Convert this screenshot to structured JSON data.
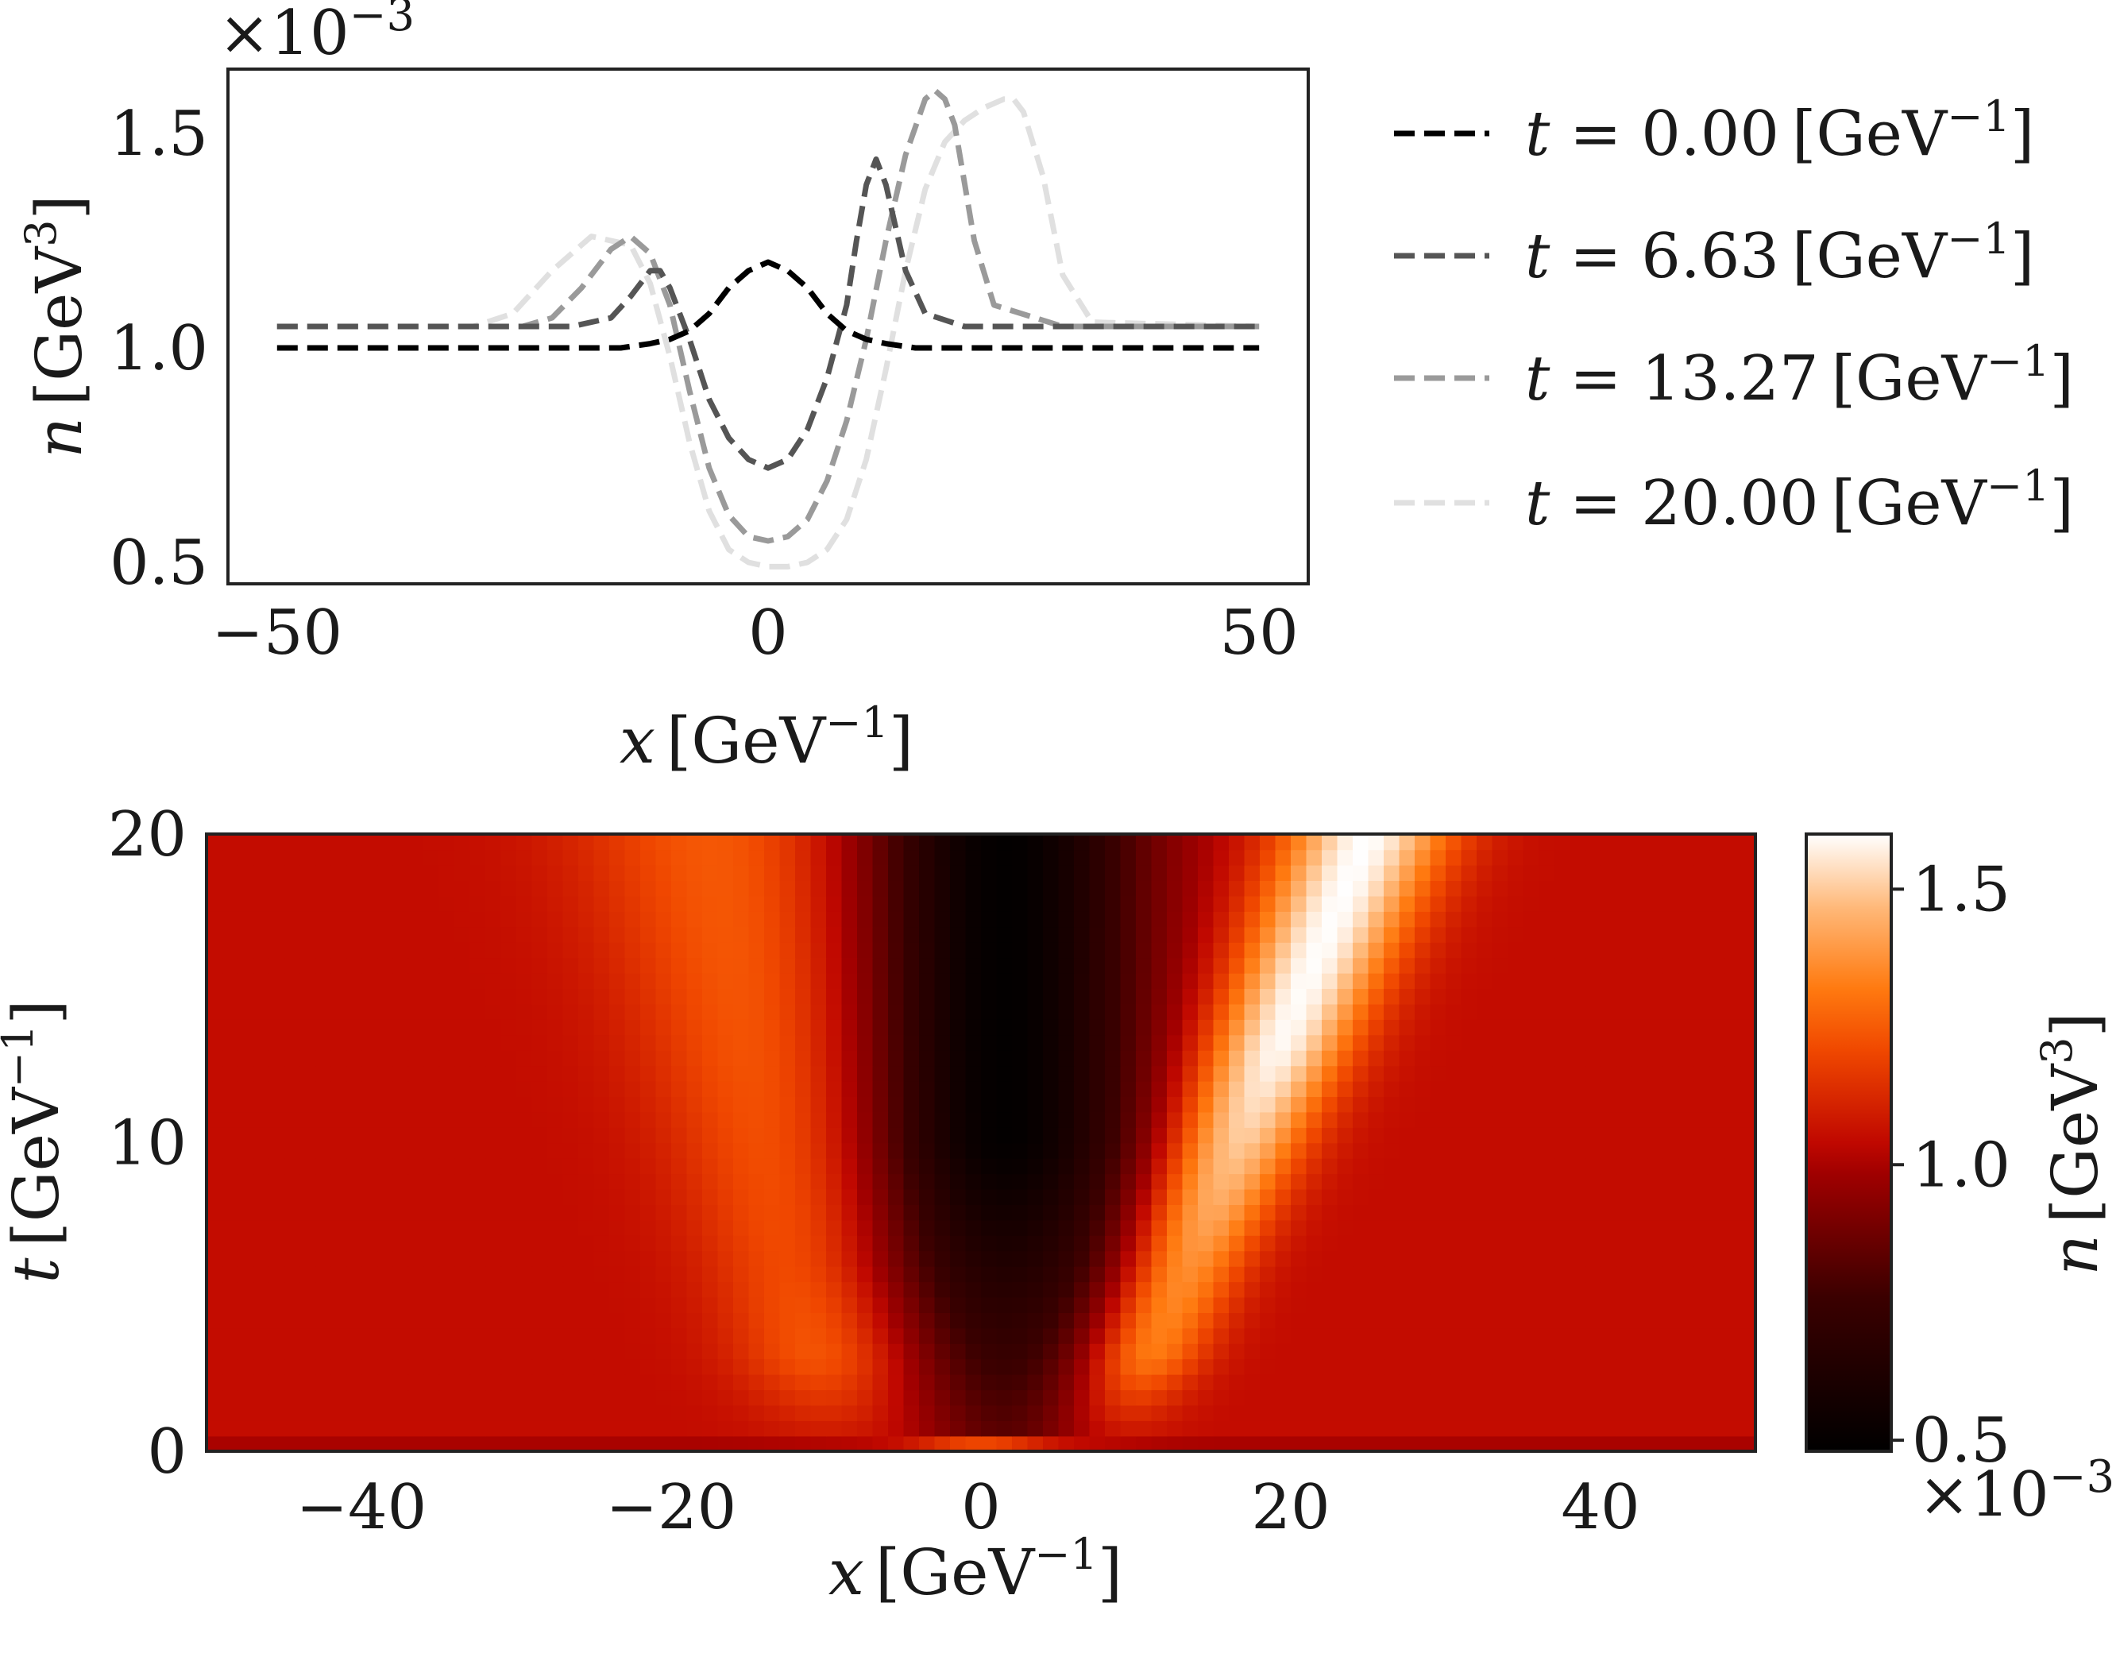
{
  "chart_data": [
    {
      "type": "line",
      "xlabel_var": "x",
      "xlabel_unit": "[GeV",
      "xlabel_exp": "−1",
      "xlabel_close": "]",
      "ylabel_var": "n",
      "ylabel_unit": "[GeV",
      "ylabel_exp": "3",
      "ylabel_close": "]",
      "scale_factor_text": "×10",
      "scale_factor_exp": "−3",
      "xlim": [
        -55,
        55
      ],
      "ylim": [
        0.45,
        1.65
      ],
      "xticks": [
        -50,
        0,
        50
      ],
      "xtick_labels": [
        "−50",
        "0",
        "50"
      ],
      "yticks": [
        0.5,
        1.0,
        1.5
      ],
      "ytick_labels": [
        "0.5",
        "1.0",
        "1.5"
      ],
      "legend_position": "outside-right",
      "grid": false,
      "series": [
        {
          "name": "t = 0.00 [GeV−1]",
          "t_text": "t",
          "val_text": " = 0.00",
          "unit_text": "[GeV",
          "exp_text": "−1",
          "close_text": "]",
          "color": "#000000",
          "x": [
            -50,
            -30,
            -20,
            -15,
            -12,
            -10,
            -8,
            -6,
            -4,
            -2,
            0,
            2,
            4,
            6,
            8,
            10,
            12,
            15,
            20,
            30,
            50
          ],
          "y": [
            1.0,
            1.0,
            1.0,
            1.0,
            1.01,
            1.02,
            1.04,
            1.08,
            1.14,
            1.18,
            1.2,
            1.18,
            1.14,
            1.08,
            1.04,
            1.02,
            1.01,
            1.0,
            1.0,
            1.0,
            1.0
          ]
        },
        {
          "name": "t = 6.63 [GeV−1]",
          "t_text": "t",
          "val_text": " = 6.63",
          "unit_text": "[GeV",
          "exp_text": "−1",
          "close_text": "]",
          "color": "#555555",
          "x": [
            -50,
            -25,
            -20,
            -16,
            -14,
            -12,
            -11,
            -10,
            -8,
            -6,
            -4,
            -2,
            0,
            2,
            4,
            6,
            8,
            9,
            10,
            11,
            12,
            14,
            16,
            20,
            50
          ],
          "y": [
            1.05,
            1.05,
            1.05,
            1.07,
            1.12,
            1.18,
            1.18,
            1.14,
            1.02,
            0.88,
            0.79,
            0.74,
            0.72,
            0.74,
            0.81,
            0.93,
            1.1,
            1.25,
            1.38,
            1.44,
            1.38,
            1.18,
            1.08,
            1.05,
            1.05
          ]
        },
        {
          "name": "t = 13.27 [GeV−1]",
          "t_text": "t",
          "val_text": " = 13.27",
          "unit_text": "[GeV",
          "exp_text": "−1",
          "close_text": "]",
          "color": "#9a9a9a",
          "x": [
            -50,
            -30,
            -25,
            -22,
            -19,
            -16,
            -14,
            -12,
            -10,
            -8,
            -6,
            -4,
            -2,
            0,
            2,
            4,
            6,
            8,
            10,
            12,
            14,
            16,
            17,
            18,
            19,
            21,
            23,
            30,
            50
          ],
          "y": [
            1.05,
            1.05,
            1.05,
            1.07,
            1.14,
            1.23,
            1.26,
            1.22,
            1.1,
            0.9,
            0.72,
            0.61,
            0.56,
            0.55,
            0.56,
            0.6,
            0.69,
            0.83,
            1.02,
            1.25,
            1.45,
            1.58,
            1.6,
            1.58,
            1.52,
            1.25,
            1.1,
            1.05,
            1.05
          ]
        },
        {
          "name": "t = 20.00 [GeV−1]",
          "t_text": "t",
          "val_text": " = 20.00",
          "unit_text": "[GeV",
          "exp_text": "−1",
          "close_text": "]",
          "color": "#e0e0e0",
          "x": [
            -50,
            -35,
            -30,
            -26,
            -22,
            -18,
            -14,
            -12,
            -10,
            -8,
            -6,
            -4,
            -2,
            0,
            2,
            4,
            6,
            8,
            10,
            12,
            14,
            16,
            18,
            20,
            22,
            24,
            25,
            26,
            28,
            30,
            33,
            50
          ],
          "y": [
            1.05,
            1.05,
            1.05,
            1.08,
            1.18,
            1.26,
            1.24,
            1.15,
            0.98,
            0.78,
            0.62,
            0.53,
            0.5,
            0.49,
            0.49,
            0.5,
            0.53,
            0.6,
            0.74,
            0.95,
            1.18,
            1.37,
            1.48,
            1.53,
            1.56,
            1.58,
            1.58,
            1.55,
            1.4,
            1.17,
            1.06,
            1.05
          ]
        }
      ]
    },
    {
      "type": "heatmap",
      "xlabel_var": "x",
      "xlabel_unit": "[GeV",
      "xlabel_exp": "−1",
      "xlabel_close": "]",
      "ylabel_var": "t",
      "ylabel_unit": "[GeV",
      "ylabel_exp": "−1",
      "ylabel_close": "]",
      "xlim": [
        -50,
        50
      ],
      "ylim": [
        0,
        20
      ],
      "xticks": [
        -40,
        -20,
        0,
        20,
        40
      ],
      "xtick_labels": [
        "−40",
        "−20",
        "0",
        "20",
        "40"
      ],
      "yticks": [
        0,
        10,
        20
      ],
      "ytick_labels": [
        "0",
        "10",
        "20"
      ],
      "colormap": "gist_heat",
      "colormap_stops": [
        {
          "v": 0.0,
          "color": "#000000"
        },
        {
          "v": 0.25,
          "color": "#3b0000"
        },
        {
          "v": 0.45,
          "color": "#a00000"
        },
        {
          "v": 0.5,
          "color": "#c00800"
        },
        {
          "v": 0.65,
          "color": "#f04800"
        },
        {
          "v": 0.75,
          "color": "#ff7a10"
        },
        {
          "v": 0.88,
          "color": "#ffb878"
        },
        {
          "v": 1.0,
          "color": "#ffffff"
        }
      ],
      "colorbar": {
        "label_var": "n",
        "label_unit": "[GeV",
        "label_exp": "3",
        "label_close": "]",
        "range": [
          0.48,
          1.6
        ],
        "ticks": [
          0.5,
          1.0,
          1.5
        ],
        "tick_labels": [
          "0.5",
          "1.0",
          "1.5"
        ],
        "scale_factor_text": "×10",
        "scale_factor_exp": "−3"
      }
    }
  ]
}
